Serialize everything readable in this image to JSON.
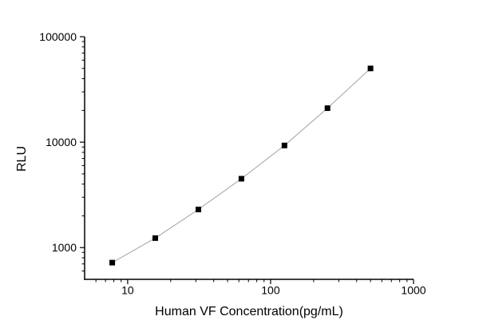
{
  "chart_data": {
    "type": "scatter",
    "title": "",
    "xlabel": "Human VF Concentration(pg/mL)",
    "ylabel": "RLU",
    "x_scale": "log",
    "y_scale": "log",
    "xlim": [
      5,
      1000
    ],
    "ylim": [
      500,
      100000
    ],
    "x_major_ticks": [
      10,
      100,
      1000
    ],
    "x_tick_labels": [
      "10",
      "100",
      "1000"
    ],
    "y_major_ticks": [
      1000,
      10000,
      100000
    ],
    "y_tick_labels": [
      "1000",
      "10000",
      "100000"
    ],
    "grid": false,
    "legend": false,
    "colors": {
      "background": "#ffffff",
      "axis": "#000000",
      "tick_label": "#000000",
      "marker": "#000000",
      "line": "#aaaaaa"
    },
    "series": [
      {
        "marker": "filled-square",
        "x": [
          7.8,
          15.6,
          31.25,
          62.5,
          125,
          250,
          500
        ],
        "y": [
          720,
          1230,
          2300,
          4500,
          9300,
          21000,
          50000
        ]
      }
    ]
  }
}
